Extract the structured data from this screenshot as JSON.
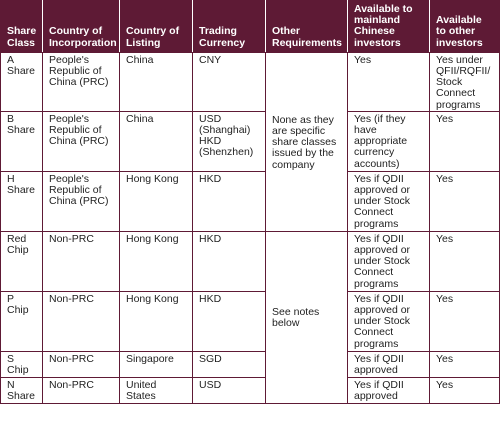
{
  "headers": {
    "share_class": "Share Class",
    "country_incorporation": "Country of Incorporation",
    "country_listing": "Country of Listing",
    "trading_currency": "Trading Currency",
    "other_requirements": "Other Requirements",
    "available_mainland": "Available to mainland Chinese investors",
    "available_other": "Available to other investors"
  },
  "rows": [
    {
      "share_class": "A Share",
      "country_incorporation": "People's Republic of China (PRC)",
      "country_listing": "China",
      "trading_currency": "CNY",
      "available_mainland": "Yes",
      "available_other": "Yes under QFII/RQFII/ Stock Connect programs"
    },
    {
      "share_class": "B Share",
      "country_incorporation": "People's Republic of China (PRC)",
      "country_listing": "China",
      "trading_currency": "USD (Shanghai) HKD (Shenzhen)",
      "available_mainland": "Yes (if they have appropriate currency accounts)",
      "available_other": "Yes"
    },
    {
      "share_class": "H Share",
      "country_incorporation": "People's Republic of China (PRC)",
      "country_listing": "Hong Kong",
      "trading_currency": "HKD",
      "available_mainland": "Yes if QDII approved or under Stock Connect programs",
      "available_other": "Yes"
    },
    {
      "share_class": "Red Chip",
      "country_incorporation": "Non-PRC",
      "country_listing": "Hong Kong",
      "trading_currency": "HKD",
      "available_mainland": "Yes if QDII approved or under Stock Connect programs",
      "available_other": "Yes"
    },
    {
      "share_class": "P Chip",
      "country_incorporation": "Non-PRC",
      "country_listing": "Hong Kong",
      "trading_currency": "HKD",
      "available_mainland": "Yes if QDII approved or under Stock Connect programs",
      "available_other": "Yes"
    },
    {
      "share_class": "S Chip",
      "country_incorporation": "Non-PRC",
      "country_listing": "Singapore",
      "trading_currency": "SGD",
      "available_mainland": "Yes if QDII approved",
      "available_other": "Yes"
    },
    {
      "share_class": "N Share",
      "country_incorporation": "Non-PRC",
      "country_listing": "United States",
      "trading_currency": "USD",
      "available_mainland": "Yes if QDII approved",
      "available_other": "Yes"
    }
  ],
  "other_requirements_notes": [
    "None as they are specific share classes issued by the company",
    "See notes below"
  ],
  "colors": {
    "header_background": "#5e1a35",
    "header_text": "#ffffff",
    "border": "#5e1a35",
    "body_text": "#1f1f1f"
  }
}
